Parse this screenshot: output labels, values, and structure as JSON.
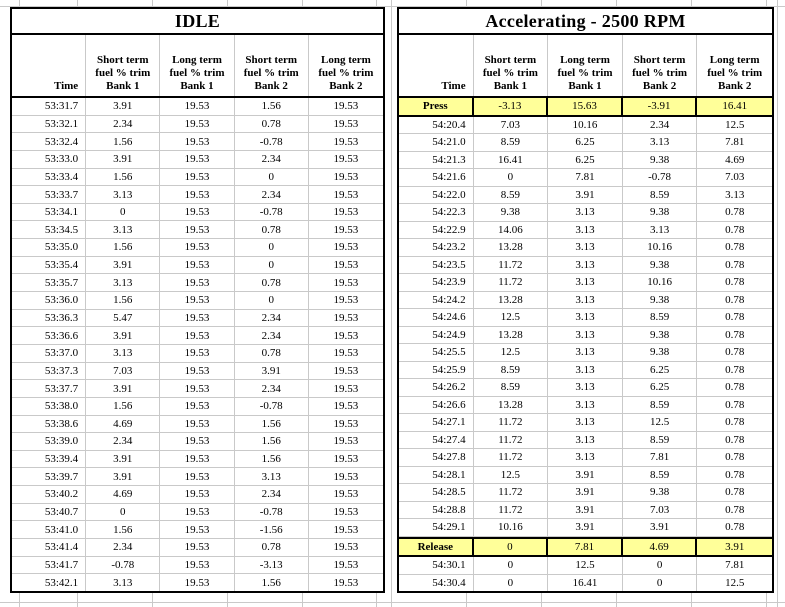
{
  "colors": {
    "highlight": "#FFFF99",
    "gridline": "#C9C9C9",
    "table_border": "#000000",
    "text": "#000000",
    "background": "#FFFFFF"
  },
  "tables": [
    {
      "title": "IDLE",
      "headers": [
        "Time",
        "Short term\nfuel % trim\nBank 1",
        "Long term\nfuel % trim\nBank 1",
        "Short term\nfuel % trim\nBank 2",
        "Long term\nfuel % trim\nBank 2"
      ],
      "highlight_rows": [],
      "rows": [
        [
          "53:31.7",
          "3.91",
          "19.53",
          "1.56",
          "19.53"
        ],
        [
          "53:32.1",
          "2.34",
          "19.53",
          "0.78",
          "19.53"
        ],
        [
          "53:32.4",
          "1.56",
          "19.53",
          "-0.78",
          "19.53"
        ],
        [
          "53:33.0",
          "3.91",
          "19.53",
          "2.34",
          "19.53"
        ],
        [
          "53:33.4",
          "1.56",
          "19.53",
          "0",
          "19.53"
        ],
        [
          "53:33.7",
          "3.13",
          "19.53",
          "2.34",
          "19.53"
        ],
        [
          "53:34.1",
          "0",
          "19.53",
          "-0.78",
          "19.53"
        ],
        [
          "53:34.5",
          "3.13",
          "19.53",
          "0.78",
          "19.53"
        ],
        [
          "53:35.0",
          "1.56",
          "19.53",
          "0",
          "19.53"
        ],
        [
          "53:35.4",
          "3.91",
          "19.53",
          "0",
          "19.53"
        ],
        [
          "53:35.7",
          "3.13",
          "19.53",
          "0.78",
          "19.53"
        ],
        [
          "53:36.0",
          "1.56",
          "19.53",
          "0",
          "19.53"
        ],
        [
          "53:36.3",
          "5.47",
          "19.53",
          "2.34",
          "19.53"
        ],
        [
          "53:36.6",
          "3.91",
          "19.53",
          "2.34",
          "19.53"
        ],
        [
          "53:37.0",
          "3.13",
          "19.53",
          "0.78",
          "19.53"
        ],
        [
          "53:37.3",
          "7.03",
          "19.53",
          "3.91",
          "19.53"
        ],
        [
          "53:37.7",
          "3.91",
          "19.53",
          "2.34",
          "19.53"
        ],
        [
          "53:38.0",
          "1.56",
          "19.53",
          "-0.78",
          "19.53"
        ],
        [
          "53:38.6",
          "4.69",
          "19.53",
          "1.56",
          "19.53"
        ],
        [
          "53:39.0",
          "2.34",
          "19.53",
          "1.56",
          "19.53"
        ],
        [
          "53:39.4",
          "3.91",
          "19.53",
          "1.56",
          "19.53"
        ],
        [
          "53:39.7",
          "3.91",
          "19.53",
          "3.13",
          "19.53"
        ],
        [
          "53:40.2",
          "4.69",
          "19.53",
          "2.34",
          "19.53"
        ],
        [
          "53:40.7",
          "0",
          "19.53",
          "-0.78",
          "19.53"
        ],
        [
          "53:41.0",
          "1.56",
          "19.53",
          "-1.56",
          "19.53"
        ],
        [
          "53:41.4",
          "2.34",
          "19.53",
          "0.78",
          "19.53"
        ],
        [
          "53:41.7",
          "-0.78",
          "19.53",
          "-3.13",
          "19.53"
        ],
        [
          "53:42.1",
          "3.13",
          "19.53",
          "1.56",
          "19.53"
        ]
      ]
    },
    {
      "title": "Accelerating - 2500 RPM",
      "headers": [
        "Time",
        "Short term\nfuel % trim\nBank 1",
        "Long term\nfuel % trim\nBank 1",
        "Short term\nfuel % trim\nBank 2",
        "Long term\nfuel % trim\nBank 2"
      ],
      "highlight_rows": [
        0,
        25
      ],
      "rows": [
        [
          "Press",
          "-3.13",
          "15.63",
          "-3.91",
          "16.41"
        ],
        [
          "54:20.4",
          "7.03",
          "10.16",
          "2.34",
          "12.5"
        ],
        [
          "54:21.0",
          "8.59",
          "6.25",
          "3.13",
          "7.81"
        ],
        [
          "54:21.3",
          "16.41",
          "6.25",
          "9.38",
          "4.69"
        ],
        [
          "54:21.6",
          "0",
          "7.81",
          "-0.78",
          "7.03"
        ],
        [
          "54:22.0",
          "8.59",
          "3.91",
          "8.59",
          "3.13"
        ],
        [
          "54:22.3",
          "9.38",
          "3.13",
          "9.38",
          "0.78"
        ],
        [
          "54:22.9",
          "14.06",
          "3.13",
          "3.13",
          "0.78"
        ],
        [
          "54:23.2",
          "13.28",
          "3.13",
          "10.16",
          "0.78"
        ],
        [
          "54:23.5",
          "11.72",
          "3.13",
          "9.38",
          "0.78"
        ],
        [
          "54:23.9",
          "11.72",
          "3.13",
          "10.16",
          "0.78"
        ],
        [
          "54:24.2",
          "13.28",
          "3.13",
          "9.38",
          "0.78"
        ],
        [
          "54:24.6",
          "12.5",
          "3.13",
          "8.59",
          "0.78"
        ],
        [
          "54:24.9",
          "13.28",
          "3.13",
          "9.38",
          "0.78"
        ],
        [
          "54:25.5",
          "12.5",
          "3.13",
          "9.38",
          "0.78"
        ],
        [
          "54:25.9",
          "8.59",
          "3.13",
          "6.25",
          "0.78"
        ],
        [
          "54:26.2",
          "8.59",
          "3.13",
          "6.25",
          "0.78"
        ],
        [
          "54:26.6",
          "13.28",
          "3.13",
          "8.59",
          "0.78"
        ],
        [
          "54:27.1",
          "11.72",
          "3.13",
          "12.5",
          "0.78"
        ],
        [
          "54:27.4",
          "11.72",
          "3.13",
          "8.59",
          "0.78"
        ],
        [
          "54:27.8",
          "11.72",
          "3.13",
          "7.81",
          "0.78"
        ],
        [
          "54:28.1",
          "12.5",
          "3.91",
          "8.59",
          "0.78"
        ],
        [
          "54:28.5",
          "11.72",
          "3.91",
          "9.38",
          "0.78"
        ],
        [
          "54:28.8",
          "11.72",
          "3.91",
          "7.03",
          "0.78"
        ],
        [
          "54:29.1",
          "10.16",
          "3.91",
          "3.91",
          "0.78"
        ],
        [
          "Release",
          "0",
          "7.81",
          "4.69",
          "3.91"
        ],
        [
          "54:30.1",
          "0",
          "12.5",
          "0",
          "7.81"
        ],
        [
          "54:30.4",
          "0",
          "16.41",
          "0",
          "12.5"
        ]
      ]
    }
  ]
}
